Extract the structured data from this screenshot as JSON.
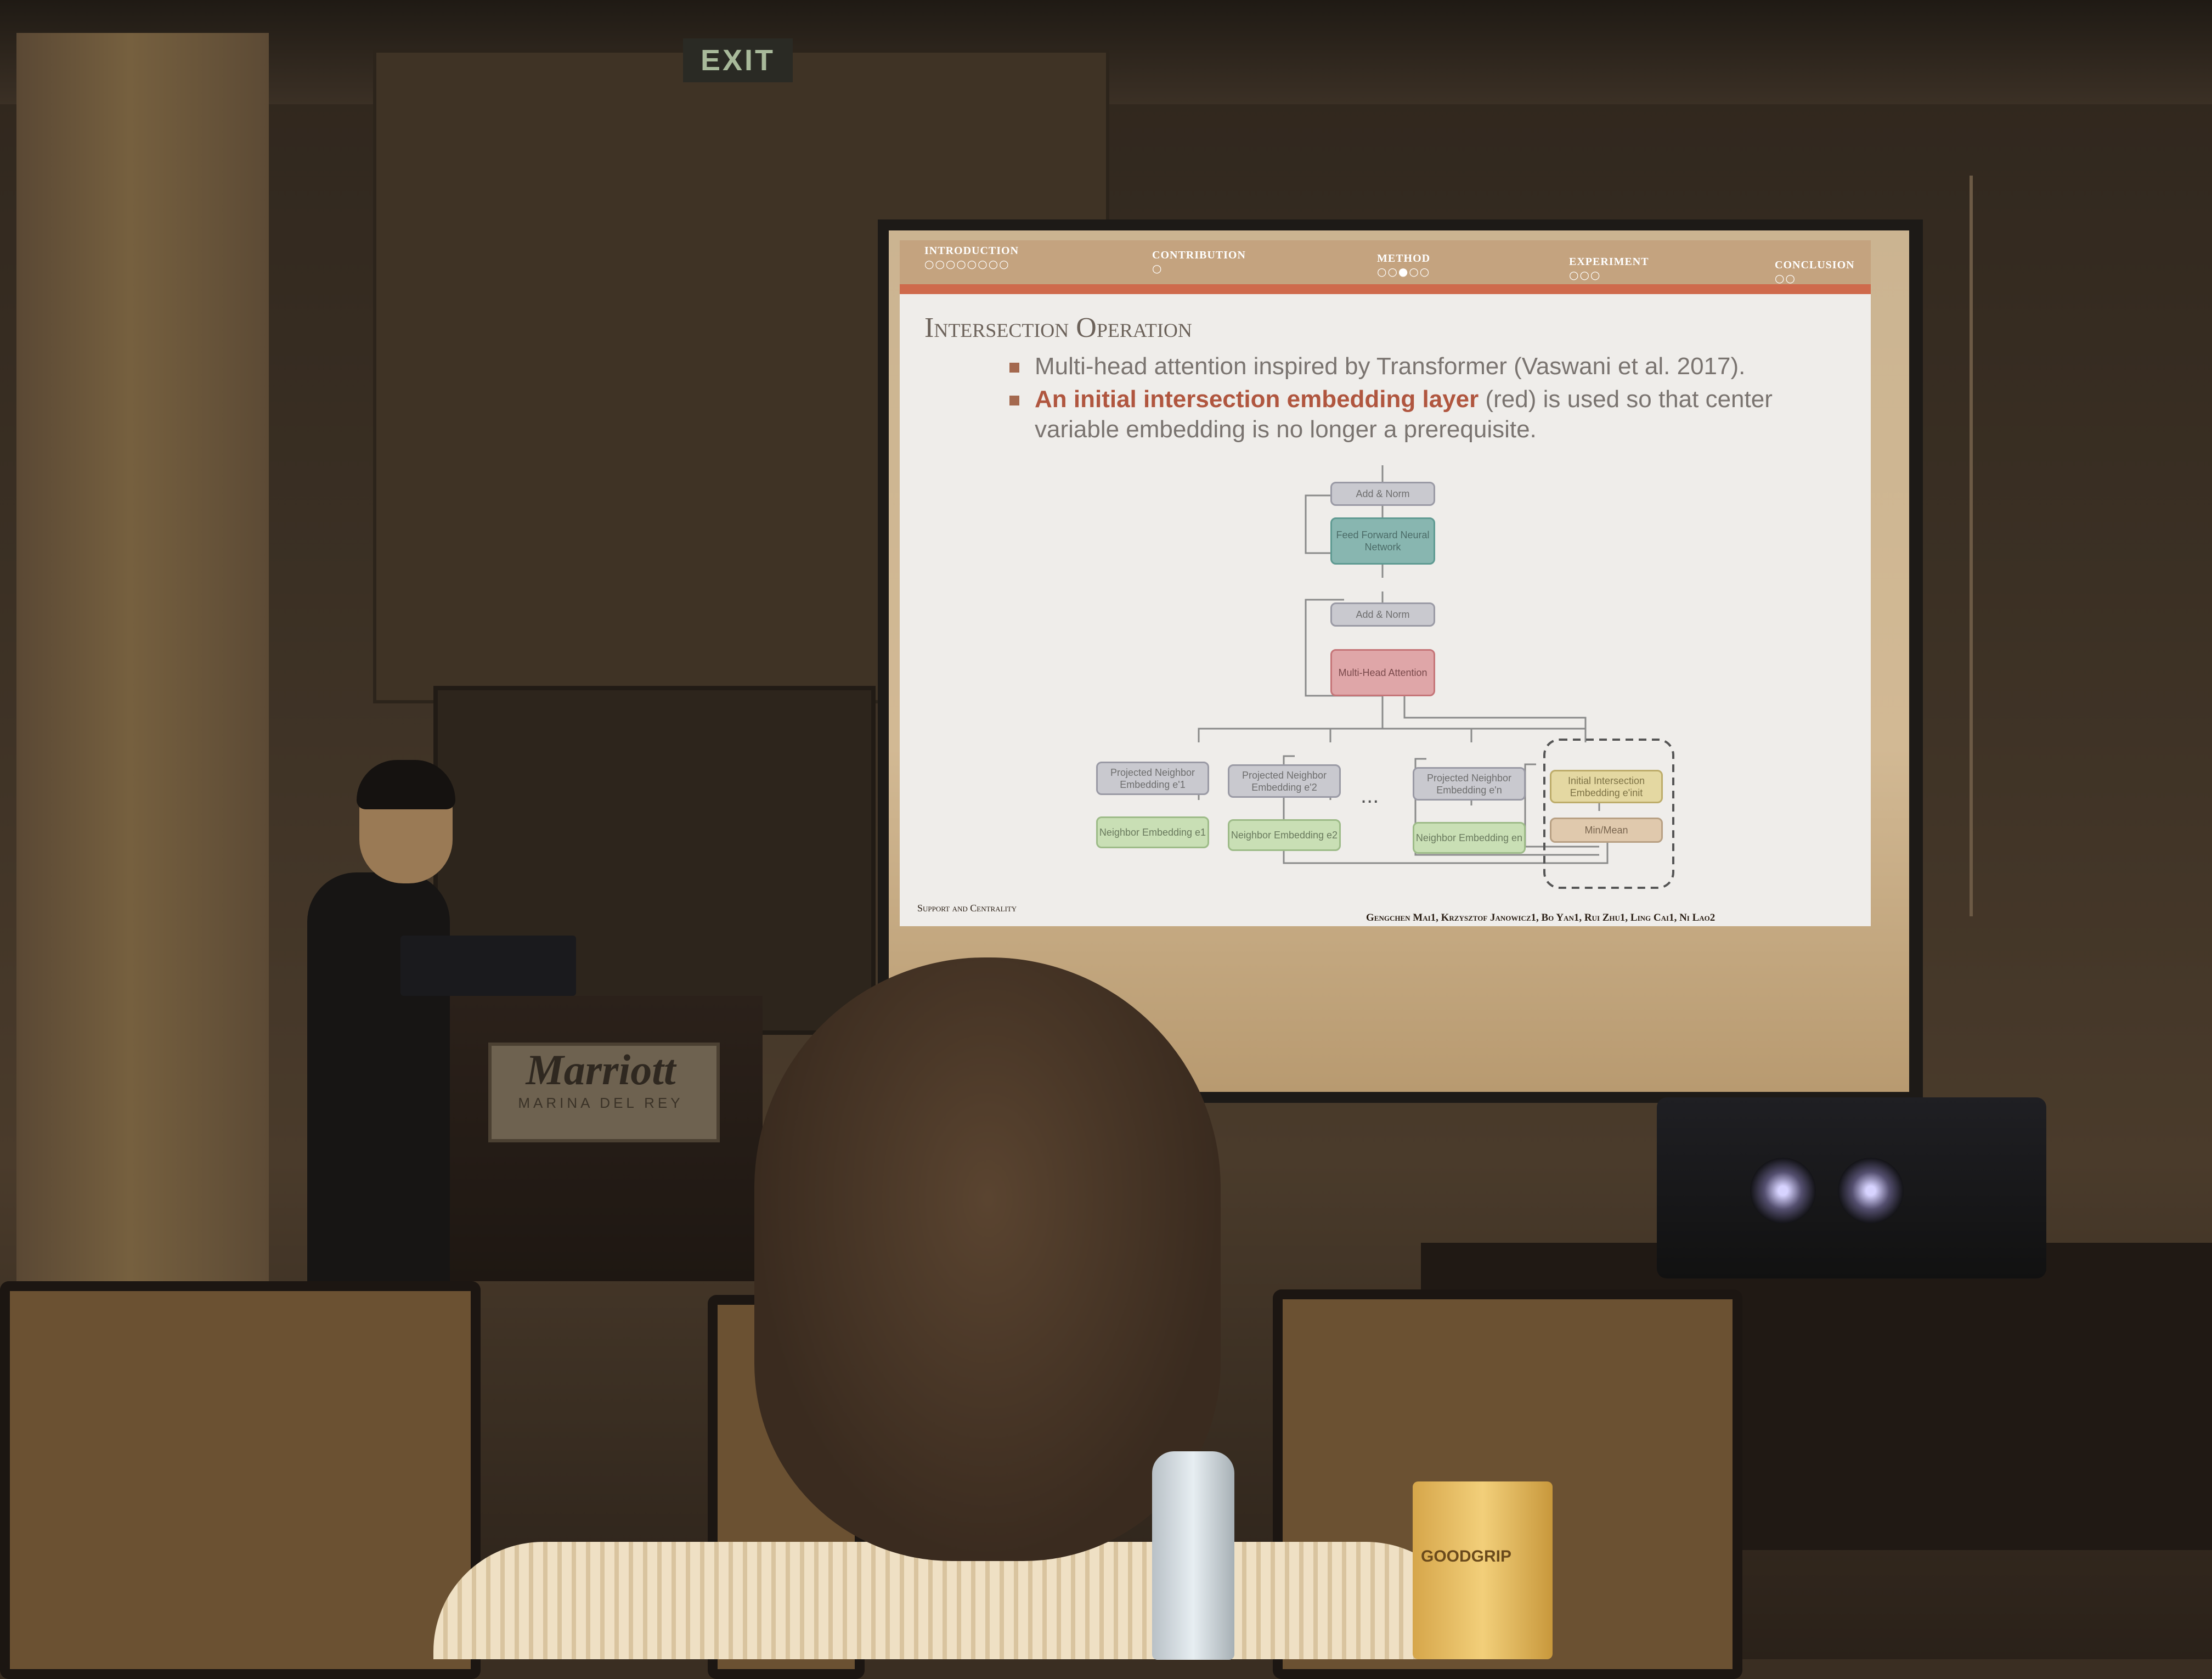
{
  "room": {
    "exit_sign": "EXIT"
  },
  "slide": {
    "nav": [
      {
        "label": "Introduction",
        "dots": "○○○○○○○○"
      },
      {
        "label": "Contribution",
        "dots": "○"
      },
      {
        "label": "Method",
        "dots": "○○●○○"
      },
      {
        "label": "Experiment",
        "dots": "○○○"
      },
      {
        "label": "Conclusion",
        "dots": "○○"
      }
    ],
    "title": "Intersection Operation",
    "bullet1": "Multi-head attention inspired by Transformer (Vaswani et al. 2017).",
    "bullet2_bold": "An initial intersection embedding layer",
    "bullet2_rest": " (red) is used so that center",
    "bullet2_line2": "variable embedding is no longer a prerequisite.",
    "diagram": {
      "add_norm_top": "Add & Norm",
      "feed_forward": "Feed Forward Neural Network",
      "add_norm_mid": "Add & Norm",
      "multi_head": "Multi-Head Attention",
      "proj1": "Projected Neighbor Embedding e'1",
      "proj2": "Projected Neighbor Embedding e'2",
      "ellipsis": "...",
      "projn": "Projected Neighbor Embedding e'n",
      "init": "Initial Intersection Embedding e'init",
      "nb1": "Neighbor Embedding e1",
      "nb2": "Neighbor Embedding e2",
      "nbn": "Neighbor Embedding en",
      "minmean": "Min/Mean"
    },
    "footer_left": "Support and Centrality",
    "footer_right": "Gengchen Mai1, Krzysztof Janowicz1, Bo Yan1, Rui Zhu1, Ling Cai1, Ni Lao2"
  },
  "podium": {
    "brand": "Marriott",
    "sub": "MARINA DEL REY"
  },
  "cup": {
    "brand": "GOODGRIP"
  }
}
